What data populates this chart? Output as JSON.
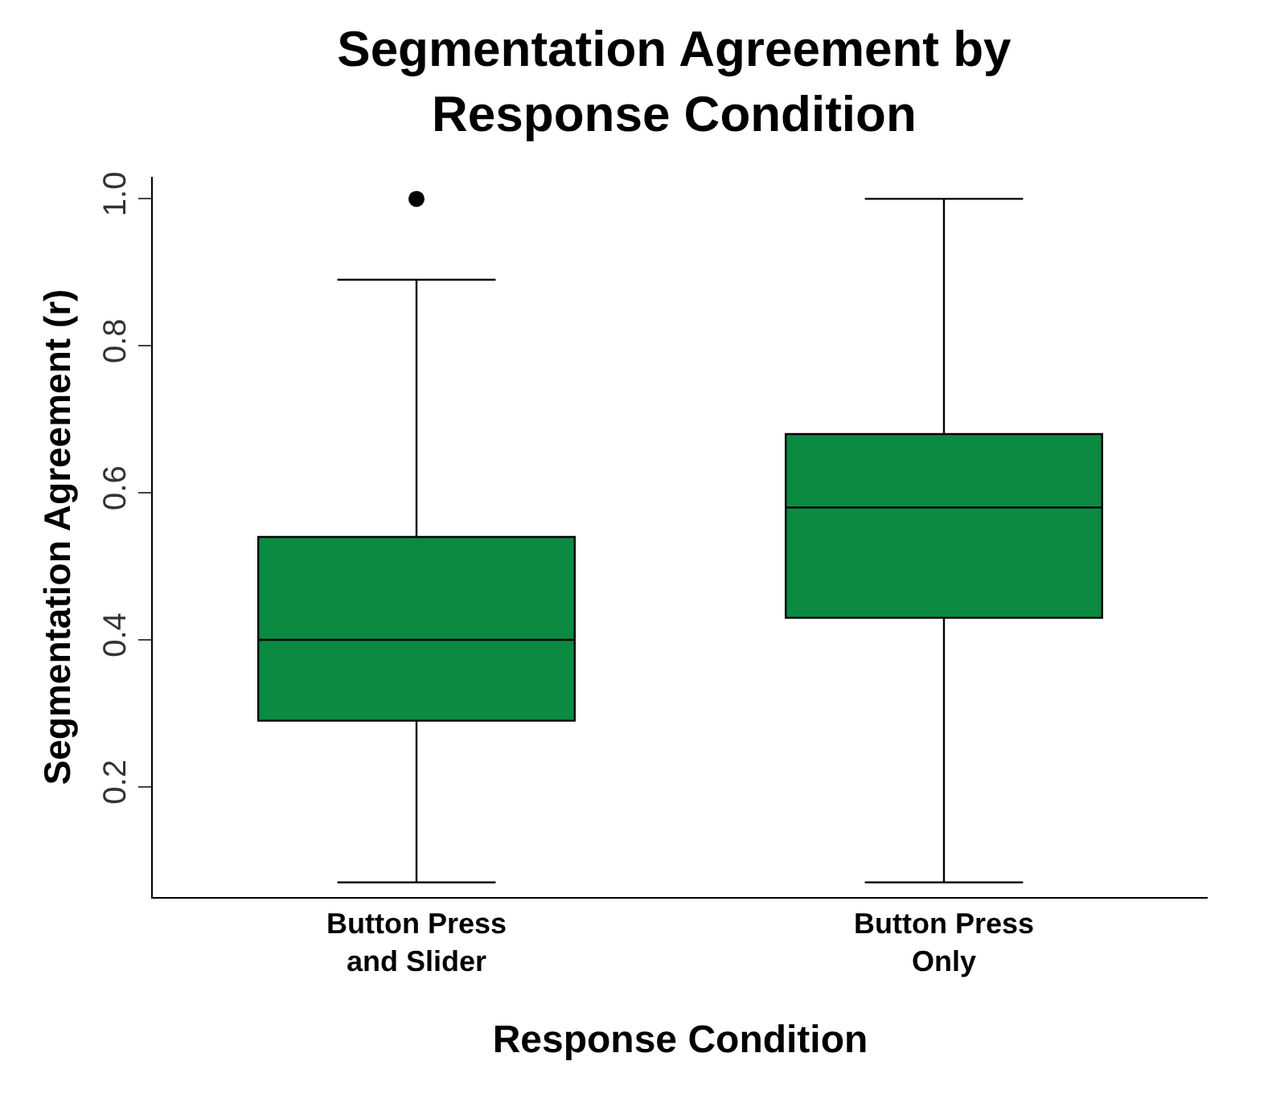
{
  "chart_data": {
    "type": "box",
    "title": "Segmentation Agreement by\nResponse Condition",
    "xlabel": "Response Condition",
    "ylabel": "Segmentation Agreement (r)",
    "categories": [
      "Button Press\nand Slider",
      "Button Press\nOnly"
    ],
    "series": [
      {
        "color": "#0b8a42",
        "boxes": [
          {
            "low": 0.07,
            "q1": 0.29,
            "median": 0.4,
            "q3": 0.54,
            "high": 0.89,
            "outliers": [
              1.0
            ]
          },
          {
            "low": 0.07,
            "q1": 0.43,
            "median": 0.58,
            "q3": 0.68,
            "high": 1.0
          }
        ]
      }
    ],
    "ylim": [
      0.05,
      1.03
    ],
    "yticks": [
      0.2,
      0.4,
      0.6,
      0.8,
      {
        "value": 1,
        "label": "1.0"
      }
    ],
    "grid": false
  }
}
